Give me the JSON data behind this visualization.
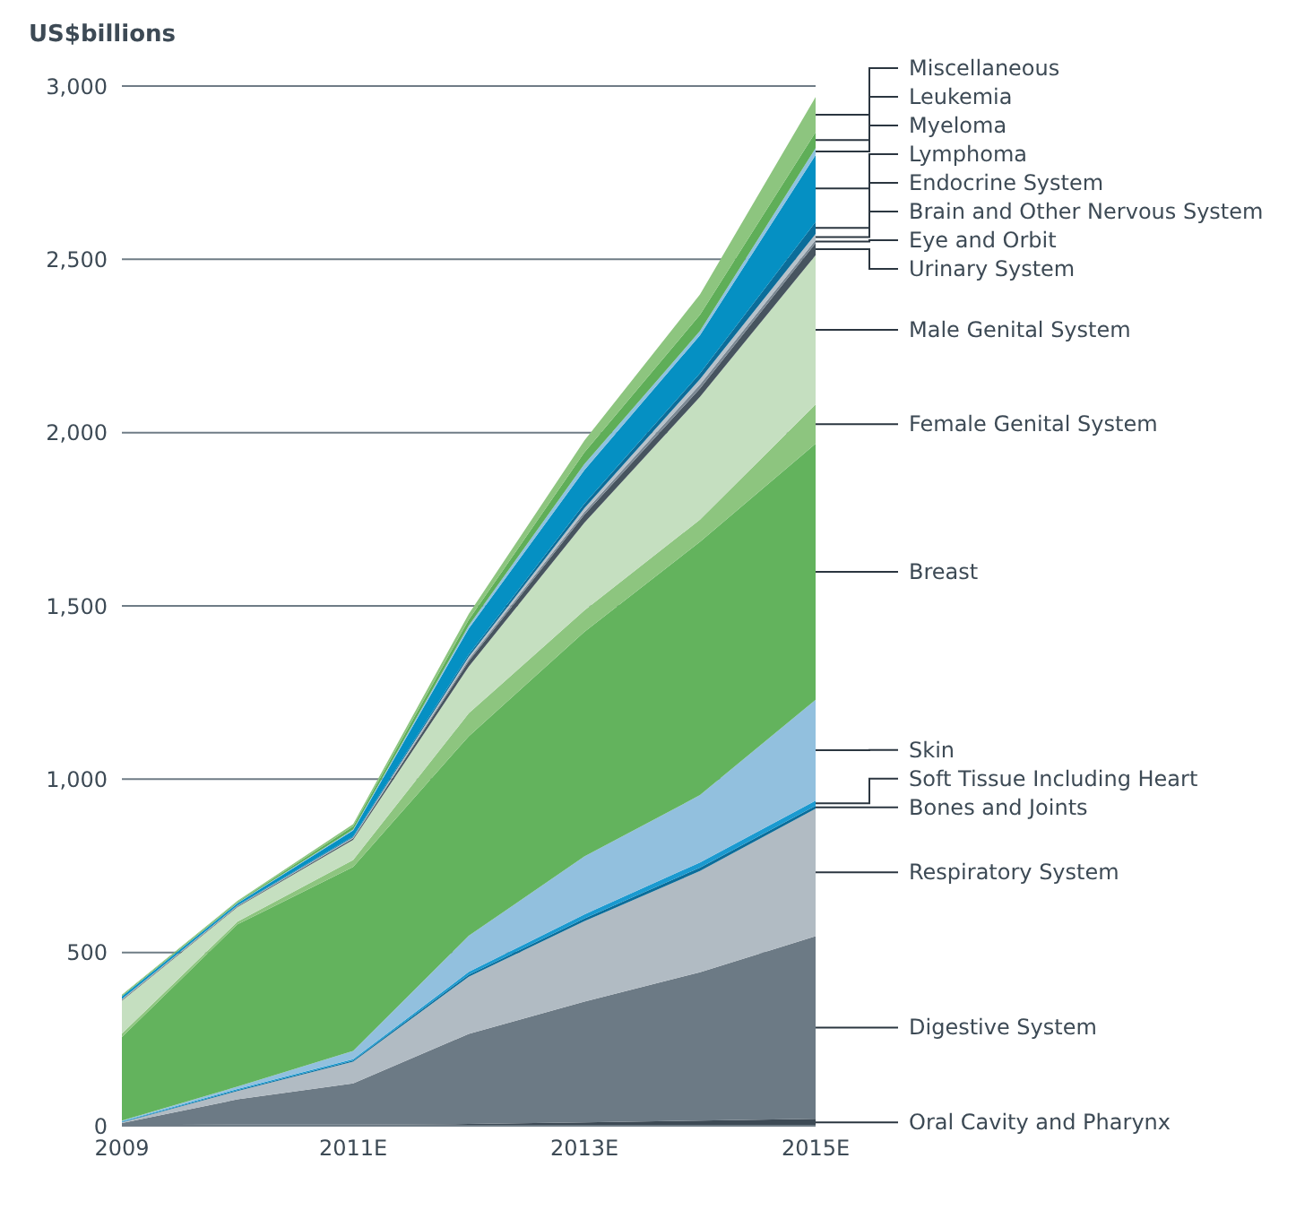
{
  "chart_data": {
    "type": "area",
    "stacked": true,
    "ylabel": "US$billions",
    "categories": [
      "2009",
      null,
      "2011E",
      null,
      "2013E",
      null,
      "2015E"
    ],
    "ylim": [
      0,
      3000
    ],
    "yticks": [
      0,
      500,
      {
        "value": 1000,
        "label": "1,000"
      },
      {
        "value": 1500,
        "label": "1,500"
      },
      {
        "value": 2000,
        "label": "2,000"
      },
      {
        "value": 2500,
        "label": "2,500"
      },
      {
        "value": 3000,
        "label": "3,000"
      }
    ],
    "grid": "y",
    "legend": "right",
    "series": [
      {
        "name": "Oral Cavity and Pharynx",
        "color": "#3d4a55",
        "values": [
          2,
          3,
          3,
          5,
          10,
          15,
          20
        ]
      },
      {
        "name": "Digestive System",
        "color": "#6c7a85",
        "values": [
          6,
          73,
          119,
          260,
          348,
          428,
          527
        ]
      },
      {
        "name": "Respiratory System",
        "color": "#b1bbc3",
        "values": [
          2,
          24,
          63,
          165,
          232,
          292,
          368
        ]
      },
      {
        "name": "Bones and Joints",
        "color": "#0b6d9a",
        "values": [
          1,
          3,
          3,
          6,
          8,
          10,
          8
        ]
      },
      {
        "name": "Soft Tissue Including Heart",
        "color": "#1a9ad0",
        "values": [
          2,
          3,
          4,
          8,
          12,
          15,
          15
        ]
      },
      {
        "name": "Skin",
        "color": "#92c0de",
        "values": [
          2,
          7,
          24,
          104,
          167,
          194,
          291
        ]
      },
      {
        "name": "Breast",
        "color": "#63b35d",
        "values": [
          241,
          468,
          531,
          576,
          648,
          731,
          739
        ]
      },
      {
        "name": "Female Genital System",
        "color": "#8dc57f",
        "values": [
          10,
          8,
          20,
          66,
          62,
          64,
          113
        ]
      },
      {
        "name": "Male Genital System",
        "color": "#c5dfc0",
        "values": [
          95,
          42,
          58,
          135,
          253,
          354,
          431
        ]
      },
      {
        "name": "Urinary System",
        "color": "#47545f",
        "values": [
          2,
          2,
          4,
          15,
          23,
          24,
          35
        ]
      },
      {
        "name": "Eye and Orbit",
        "color": "#7b8893",
        "values": [
          1,
          1,
          1,
          6,
          8,
          12,
          9
        ]
      },
      {
        "name": "Brain and Other Nervous System",
        "color": "#b7c1c9",
        "values": [
          1,
          1,
          2,
          7,
          11,
          15,
          17
        ]
      },
      {
        "name": "Endocrine System",
        "color": "#0b6d9a",
        "values": [
          1,
          1,
          3,
          7,
          13,
          17,
          35
        ]
      },
      {
        "name": "Lymphoma",
        "color": "#0590c3",
        "values": [
          7,
          6,
          17,
          75,
          97,
          110,
          193
        ]
      },
      {
        "name": "Myeloma",
        "color": "#8fc2e0",
        "values": [
          1,
          1,
          3,
          8,
          17,
          12,
          20
        ]
      },
      {
        "name": "Leukemia",
        "color": "#5fae58",
        "values": [
          2,
          3,
          9,
          17,
          34,
          47,
          46
        ]
      },
      {
        "name": "Miscellaneous",
        "color": "#8dc57f",
        "values": [
          2,
          3,
          6,
          17,
          34,
          59,
          101
        ]
      }
    ]
  }
}
